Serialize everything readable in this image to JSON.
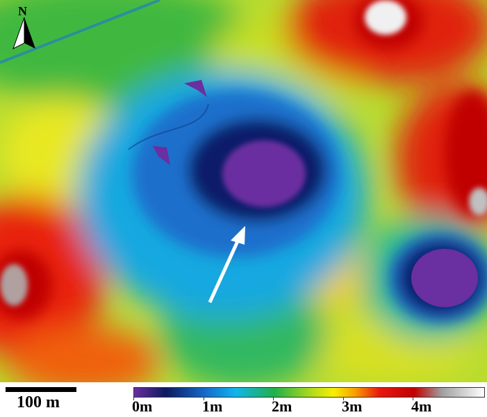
{
  "north_arrow": {
    "label": "N"
  },
  "scale_bar": {
    "label": "100 m"
  },
  "legend": {
    "type": "elevation color ramp",
    "ticks": [
      "0m",
      "1m",
      "2m",
      "3m",
      "4m"
    ],
    "colors": [
      "#6a2fa0",
      "#0b1a5e",
      "#1468c8",
      "#12b4ec",
      "#1eb04a",
      "#f8f000",
      "#e81a10",
      "#c00000",
      "#a0a0a0",
      "#ffffff"
    ]
  },
  "annotation": {
    "type": "arrow",
    "color": "#ffffff"
  }
}
